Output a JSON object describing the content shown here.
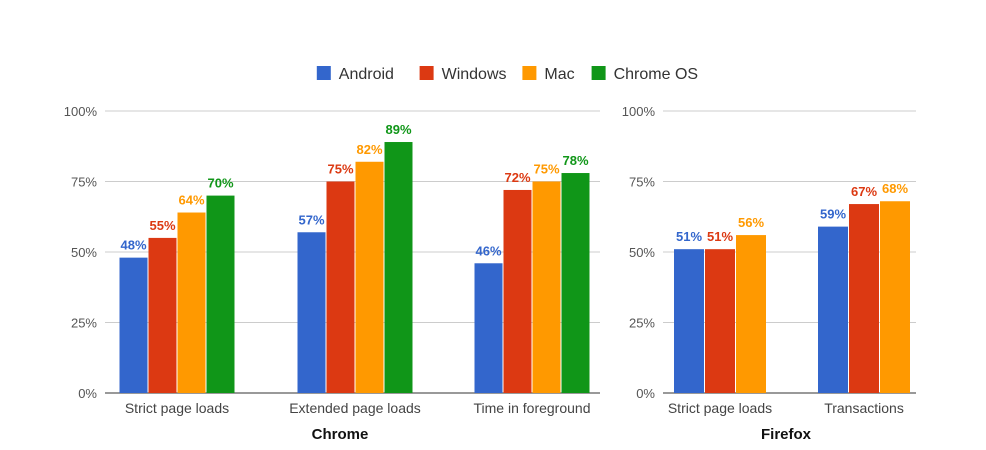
{
  "legend": {
    "placement": "top-center",
    "entries": [
      {
        "name": "Android",
        "color": "#3366cc"
      },
      {
        "name": "Windows",
        "color": "#dc3912"
      },
      {
        "name": "Mac",
        "color": "#ff9900"
      },
      {
        "name": "Chrome OS",
        "color": "#109618"
      }
    ]
  },
  "chart_data": [
    {
      "type": "bar",
      "title": "Chrome",
      "categories": [
        "Strict page loads",
        "Extended page loads",
        "Time in foreground"
      ],
      "series": [
        {
          "name": "Android",
          "color": "#3366cc",
          "values": [
            48,
            57,
            46
          ],
          "labels": [
            "48%",
            "57%",
            "46%"
          ]
        },
        {
          "name": "Windows",
          "color": "#dc3912",
          "values": [
            55,
            75,
            72
          ],
          "labels": [
            "55%",
            "75%",
            "72%"
          ]
        },
        {
          "name": "Mac",
          "color": "#ff9900",
          "values": [
            64,
            82,
            75
          ],
          "labels": [
            "64%",
            "82%",
            "75%"
          ]
        },
        {
          "name": "Chrome OS",
          "color": "#109618",
          "values": [
            70,
            89,
            78
          ],
          "labels": [
            "70%",
            "89%",
            "78%"
          ]
        }
      ],
      "yticks": [
        "0%",
        "25%",
        "50%",
        "75%",
        "100%"
      ],
      "ylim": [
        0,
        100
      ],
      "grid": true
    },
    {
      "type": "bar",
      "title": "Firefox",
      "categories": [
        "Strict page loads",
        "Transactions"
      ],
      "series": [
        {
          "name": "Android",
          "color": "#3366cc",
          "values": [
            51,
            59
          ],
          "labels": [
            "51%",
            "59%"
          ]
        },
        {
          "name": "Windows",
          "color": "#dc3912",
          "values": [
            51,
            67
          ],
          "labels": [
            "51%",
            "67%"
          ]
        },
        {
          "name": "Mac",
          "color": "#ff9900",
          "values": [
            56,
            68
          ],
          "labels": [
            "56%",
            "68%"
          ]
        }
      ],
      "yticks": [
        "0%",
        "25%",
        "50%",
        "75%",
        "100%"
      ],
      "ylim": [
        0,
        100
      ],
      "grid": true
    }
  ]
}
